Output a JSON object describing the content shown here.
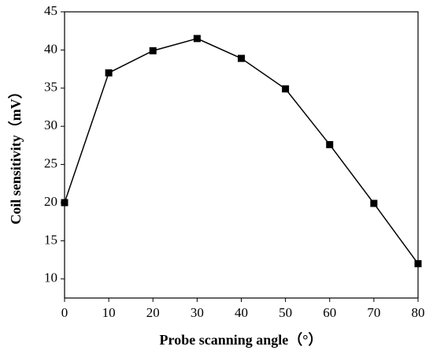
{
  "chart_data": {
    "type": "line",
    "x_label": "Probe scanning angle（°）",
    "y_label": "Coil sensitivity（mV）",
    "x": [
      0,
      10,
      20,
      30,
      40,
      50,
      60,
      70,
      80
    ],
    "series": [
      {
        "color": "#000000",
        "values": [
          20,
          37,
          39.9,
          41.5,
          38.9,
          34.9,
          27.6,
          19.9,
          12
        ]
      }
    ],
    "xlim": [
      0,
      80
    ],
    "xticks": [
      0,
      10,
      20,
      30,
      40,
      50,
      60,
      70,
      80
    ],
    "ylim": [
      7.5,
      45
    ],
    "yticks": [
      10,
      15,
      20,
      25,
      30,
      35,
      40,
      45
    ],
    "grid": false
  }
}
